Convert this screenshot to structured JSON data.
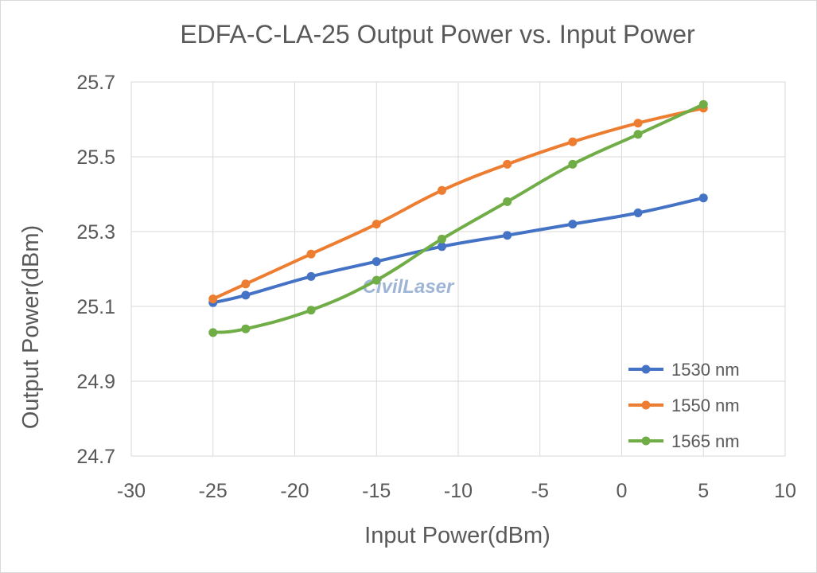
{
  "chart_data": {
    "type": "line",
    "title": "EDFA-C-LA-25  Output Power vs. Input Power",
    "xlabel": "Input Power(dBm)",
    "ylabel": "Output Power(dBm)",
    "xlim": [
      -30,
      10
    ],
    "ylim": [
      24.7,
      25.7
    ],
    "x_ticks": [
      "-30",
      "-25",
      "-20",
      "-15",
      "-10",
      "-5",
      "0",
      "5",
      "10"
    ],
    "y_ticks": [
      "25.7",
      "25.5",
      "25.3",
      "25.1",
      "24.9",
      "24.7"
    ],
    "grid": true,
    "legend_position": "bottom-right",
    "watermark": "CivilLaser",
    "series": [
      {
        "name": "1530 nm",
        "color": "#4472c4",
        "x": [
          -25,
          -23,
          -19,
          -15,
          -11,
          -7,
          -3,
          1,
          5
        ],
        "y": [
          25.11,
          25.13,
          25.18,
          25.22,
          25.26,
          25.29,
          25.32,
          25.35,
          25.39
        ]
      },
      {
        "name": "1550 nm",
        "color": "#ed7d31",
        "x": [
          -25,
          -23,
          -19,
          -15,
          -11,
          -7,
          -3,
          1,
          5
        ],
        "y": [
          25.12,
          25.16,
          25.24,
          25.32,
          25.41,
          25.48,
          25.54,
          25.59,
          25.63
        ]
      },
      {
        "name": "1565 nm",
        "color": "#70ad47",
        "x": [
          -25,
          -23,
          -19,
          -15,
          -11,
          -7,
          -3,
          1,
          5
        ],
        "y": [
          25.03,
          25.04,
          25.09,
          25.17,
          25.28,
          25.38,
          25.48,
          25.56,
          25.64
        ]
      }
    ]
  }
}
